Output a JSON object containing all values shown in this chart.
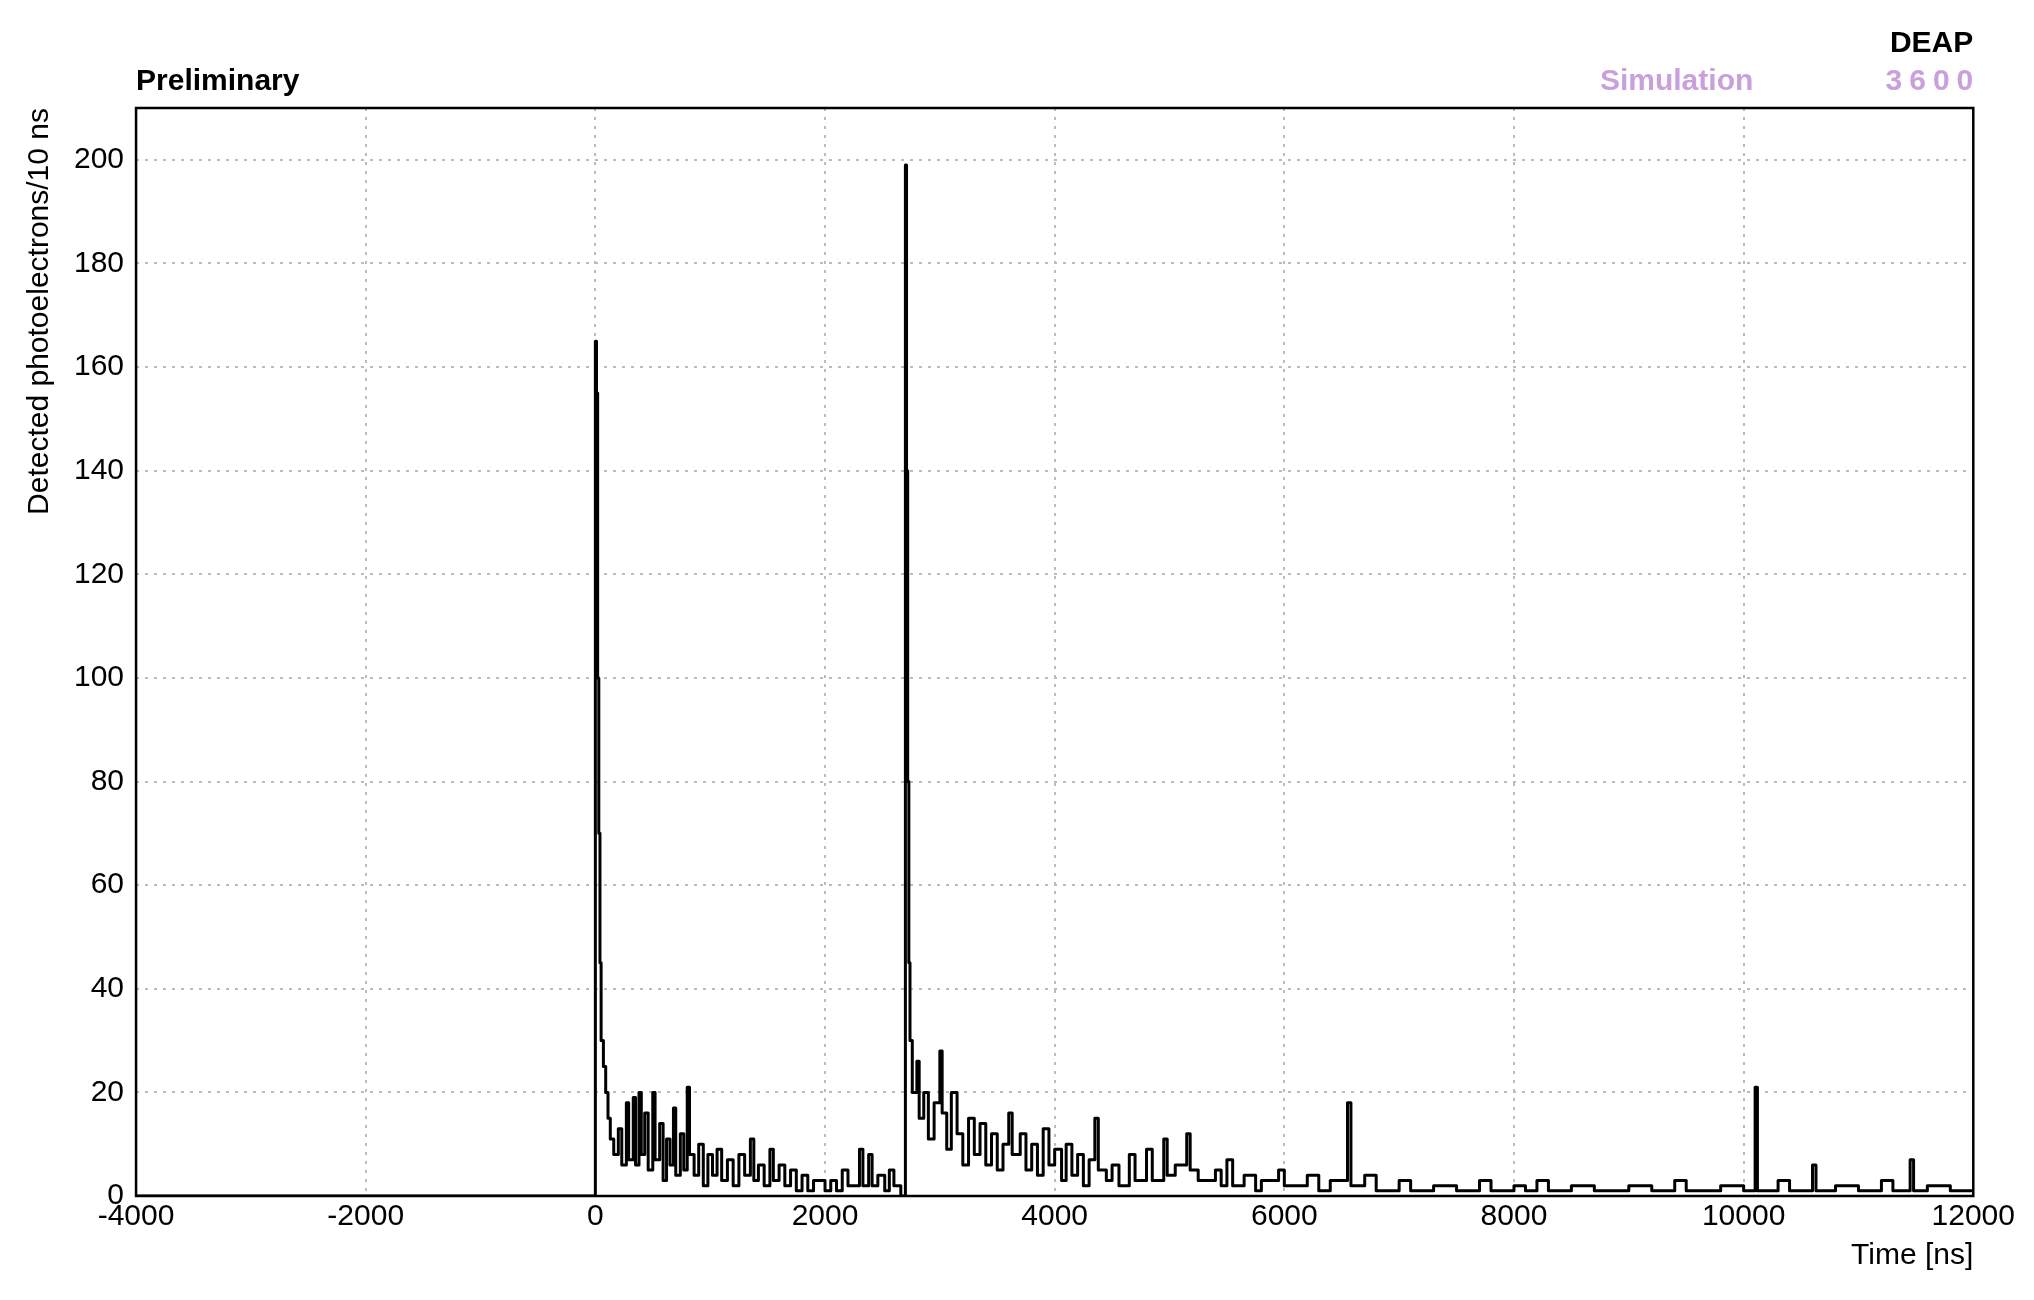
{
  "chart_data": {
    "type": "step",
    "xlabel": "Time [ns]",
    "ylabel": "Detected photoelectrons/10 ns",
    "annotations": [
      "Preliminary",
      "Simulation",
      "DEAP",
      "3600"
    ],
    "xlim": [
      -4000,
      12000
    ],
    "xticks": [
      -4000,
      -2000,
      0,
      2000,
      4000,
      6000,
      8000,
      10000,
      12000
    ],
    "ylim": [
      0,
      210
    ],
    "yticks": [
      0,
      20,
      40,
      60,
      80,
      100,
      120,
      140,
      160,
      180,
      200
    ],
    "grid": true,
    "line_style": "solid",
    "series": [
      {
        "color": "#000000",
        "x": [
          -4000,
          0,
          10,
          20,
          30,
          40,
          50,
          70,
          90,
          110,
          130,
          160,
          200,
          230,
          270,
          290,
          330,
          350,
          380,
          400,
          430,
          460,
          500,
          520,
          560,
          590,
          620,
          650,
          680,
          700,
          740,
          770,
          800,
          820,
          860,
          900,
          940,
          980,
          1020,
          1060,
          1100,
          1150,
          1200,
          1250,
          1300,
          1350,
          1380,
          1420,
          1470,
          1520,
          1550,
          1600,
          1650,
          1700,
          1750,
          1800,
          1850,
          1900,
          2000,
          2050,
          2100,
          2150,
          2200,
          2300,
          2330,
          2380,
          2410,
          2460,
          2520,
          2560,
          2600,
          2660,
          2700,
          2710,
          2720,
          2730,
          2740,
          2760,
          2800,
          2820,
          2860,
          2900,
          2950,
          3000,
          3020,
          3060,
          3100,
          3150,
          3200,
          3250,
          3300,
          3350,
          3400,
          3450,
          3500,
          3550,
          3600,
          3630,
          3700,
          3750,
          3800,
          3850,
          3900,
          3950,
          4000,
          4060,
          4100,
          4150,
          4200,
          4250,
          4300,
          4350,
          4380,
          4450,
          4500,
          4560,
          4650,
          4700,
          4800,
          4850,
          4950,
          4980,
          5050,
          5150,
          5180,
          5250,
          5400,
          5450,
          5500,
          5550,
          5650,
          5750,
          5800,
          5950,
          6000,
          6200,
          6300,
          6400,
          6550,
          6580,
          6700,
          6800,
          7000,
          7100,
          7300,
          7500,
          7700,
          7800,
          8000,
          8100,
          8200,
          8300,
          8500,
          8700,
          9000,
          9200,
          9400,
          9500,
          9800,
          10000,
          10100,
          10120,
          10300,
          10400,
          10600,
          10630,
          10800,
          11000,
          11200,
          11300,
          11450,
          11480,
          11600,
          11800,
          11990
        ],
        "values": [
          0,
          165,
          155,
          100,
          70,
          45,
          30,
          25,
          20,
          15,
          11,
          8,
          13,
          6,
          18,
          7,
          19,
          6,
          20,
          8,
          16,
          5,
          20,
          7,
          14,
          3,
          11,
          6,
          17,
          4,
          12,
          5,
          21,
          8,
          4,
          10,
          2,
          8,
          4,
          9,
          3,
          7,
          2,
          8,
          4,
          11,
          3,
          6,
          2,
          9,
          3,
          6,
          2,
          5,
          1,
          4,
          1,
          3,
          1,
          3,
          1,
          5,
          2,
          9,
          2,
          8,
          2,
          4,
          1,
          5,
          2,
          0,
          199,
          140,
          80,
          45,
          30,
          20,
          26,
          15,
          20,
          11,
          18,
          28,
          16,
          9,
          20,
          12,
          6,
          15,
          8,
          14,
          6,
          12,
          5,
          10,
          16,
          8,
          12,
          5,
          10,
          4,
          13,
          6,
          9,
          3,
          10,
          4,
          8,
          2,
          7,
          15,
          5,
          3,
          6,
          2,
          8,
          3,
          9,
          3,
          11,
          4,
          6,
          12,
          5,
          3,
          5,
          2,
          7,
          2,
          4,
          1,
          3,
          5,
          2,
          4,
          1,
          3,
          18,
          2,
          4,
          1,
          3,
          1,
          2,
          1,
          3,
          1,
          2,
          1,
          3,
          1,
          2,
          1,
          2,
          1,
          3,
          1,
          2,
          1,
          21,
          1,
          3,
          1,
          6,
          1,
          2,
          1,
          3,
          1,
          7,
          1,
          2,
          1,
          1
        ]
      }
    ]
  }
}
